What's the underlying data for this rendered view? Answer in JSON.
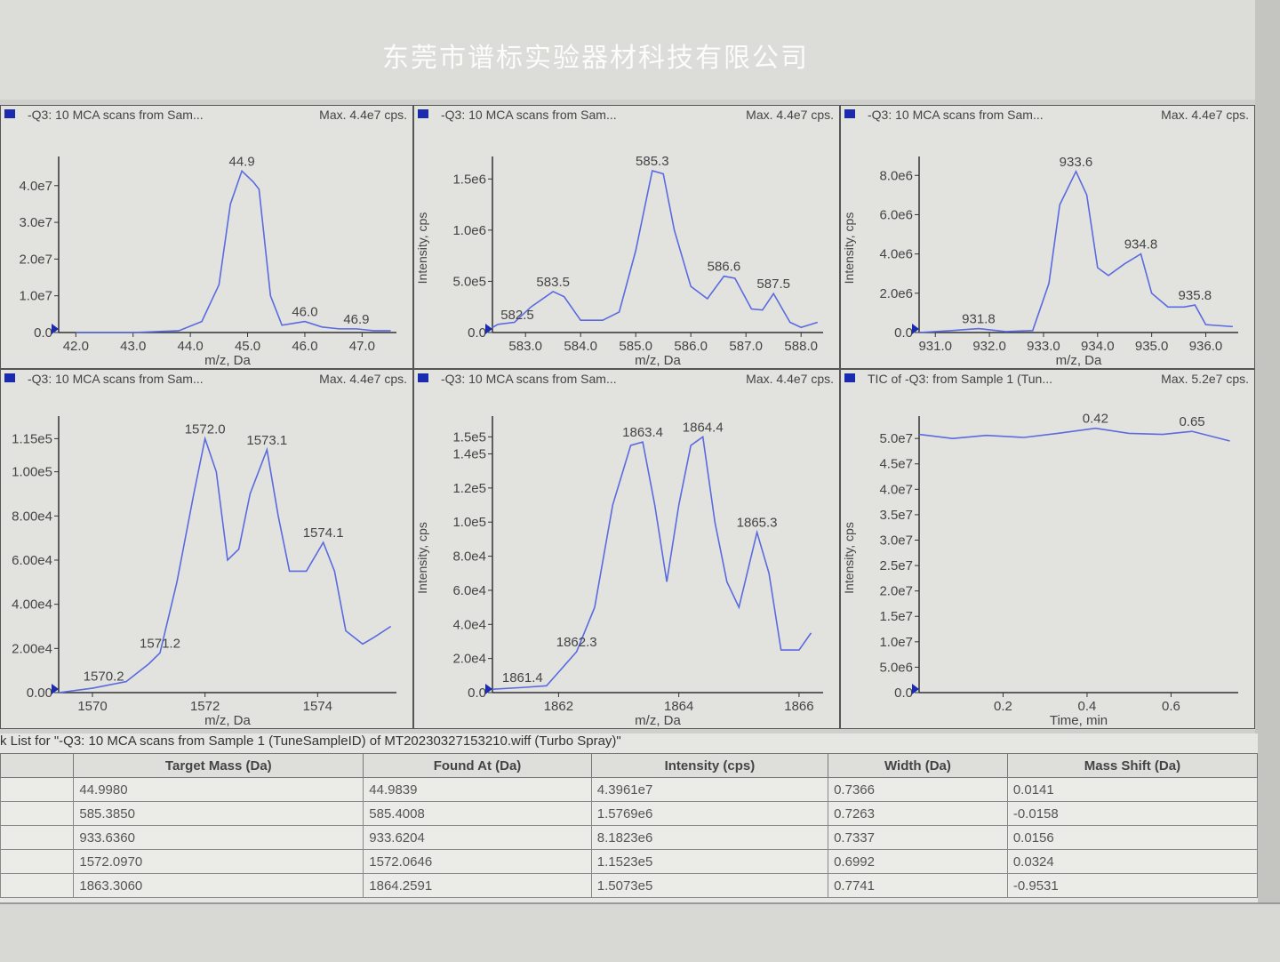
{
  "watermark": "东莞市谱标实验器材科技有限公司",
  "colors": {
    "series": "#5a6ae0",
    "legend": "#1a2bb0"
  },
  "chart_data": [
    {
      "type": "line",
      "title": "-Q3: 10 MCA scans from Sam...",
      "max_label": "Max. 4.4e7 cps.",
      "xlabel": "m/z, Da",
      "ylabel": "",
      "xlim": [
        41.7,
        47.6
      ],
      "ylim": [
        0,
        46000000.0
      ],
      "xticks": [
        {
          "v": 42,
          "l": "42.0"
        },
        {
          "v": 43,
          "l": "43.0"
        },
        {
          "v": 44,
          "l": "44.0"
        },
        {
          "v": 45,
          "l": "45.0"
        },
        {
          "v": 46,
          "l": "46.0"
        },
        {
          "v": 47,
          "l": "47.0"
        }
      ],
      "yticks": [
        {
          "v": 0,
          "l": "0.0"
        },
        {
          "v": 10000000.0,
          "l": "1.0e7"
        },
        {
          "v": 20000000.0,
          "l": "2.0e7"
        },
        {
          "v": 30000000.0,
          "l": "3.0e7"
        },
        {
          "v": 40000000.0,
          "l": "4.0e7"
        }
      ],
      "x": [
        42,
        43,
        43.8,
        44.2,
        44.5,
        44.7,
        44.9,
        45.1,
        45.2,
        45.4,
        45.6,
        45.8,
        46.0,
        46.3,
        46.6,
        46.9,
        47.2,
        47.5
      ],
      "y": [
        0,
        0,
        500000.0,
        3000000.0,
        13000000.0,
        35000000.0,
        44000000.0,
        41000000.0,
        39000000.0,
        10000000.0,
        2000000.0,
        2500000.0,
        3000000.0,
        1500000.0,
        1000000.0,
        1000000.0,
        500000.0,
        500000.0
      ],
      "peaks": [
        {
          "x": 44.9,
          "y": 44000000.0,
          "l": "44.9"
        },
        {
          "x": 46.0,
          "y": 3000000.0,
          "l": "46.0"
        },
        {
          "x": 46.9,
          "y": 1000000.0,
          "l": "46.9"
        }
      ]
    },
    {
      "type": "line",
      "title": "-Q3: 10 MCA scans from Sam...",
      "max_label": "Max. 4.4e7 cps.",
      "xlabel": "m/z, Da",
      "ylabel": "Intensity, cps",
      "xlim": [
        582.4,
        588.4
      ],
      "ylim": [
        0,
        1650000.0
      ],
      "xticks": [
        {
          "v": 583,
          "l": "583.0"
        },
        {
          "v": 584,
          "l": "584.0"
        },
        {
          "v": 585,
          "l": "585.0"
        },
        {
          "v": 586,
          "l": "586.0"
        },
        {
          "v": 587,
          "l": "587.0"
        },
        {
          "v": 588,
          "l": "588.0"
        }
      ],
      "yticks": [
        {
          "v": 0,
          "l": "0.0"
        },
        {
          "v": 500000.0,
          "l": "5.0e5"
        },
        {
          "v": 1000000.0,
          "l": "1.0e6"
        },
        {
          "v": 1500000.0,
          "l": "1.5e6"
        }
      ],
      "x": [
        582.4,
        582.5,
        582.8,
        583.1,
        583.5,
        583.7,
        584.0,
        584.4,
        584.7,
        585.0,
        585.3,
        585.5,
        585.7,
        586.0,
        586.3,
        586.6,
        586.8,
        587.1,
        587.3,
        587.5,
        587.8,
        588.0,
        588.3
      ],
      "y": [
        50000.0,
        80000.0,
        100000.0,
        250000.0,
        400000.0,
        350000.0,
        120000.0,
        120000.0,
        200000.0,
        800000.0,
        1580000.0,
        1550000.0,
        1000000.0,
        450000.0,
        330000.0,
        550000.0,
        530000.0,
        230000.0,
        220000.0,
        380000.0,
        100000.0,
        50000.0,
        100000.0
      ],
      "peaks": [
        {
          "x": 582.5,
          "y": 80000.0,
          "l": "582.5"
        },
        {
          "x": 583.5,
          "y": 400000.0,
          "l": "583.5"
        },
        {
          "x": 585.3,
          "y": 1580000.0,
          "l": "585.3"
        },
        {
          "x": 586.6,
          "y": 550000.0,
          "l": "586.6"
        },
        {
          "x": 587.5,
          "y": 380000.0,
          "l": "587.5"
        }
      ]
    },
    {
      "type": "line",
      "title": "-Q3: 10 MCA scans from Sam...",
      "max_label": "Max. 4.4e7 cps.",
      "xlabel": "m/z, Da",
      "ylabel": "Intensity, cps",
      "xlim": [
        930.7,
        936.6
      ],
      "ylim": [
        0,
        8600000.0
      ],
      "xticks": [
        {
          "v": 931,
          "l": "931.0"
        },
        {
          "v": 932,
          "l": "932.0"
        },
        {
          "v": 933,
          "l": "933.0"
        },
        {
          "v": 934,
          "l": "934.0"
        },
        {
          "v": 935,
          "l": "935.0"
        },
        {
          "v": 936,
          "l": "936.0"
        }
      ],
      "yticks": [
        {
          "v": 0,
          "l": "0.0"
        },
        {
          "v": 2000000.0,
          "l": "2.0e6"
        },
        {
          "v": 4000000.0,
          "l": "4.0e6"
        },
        {
          "v": 6000000.0,
          "l": "6.0e6"
        },
        {
          "v": 8000000.0,
          "l": "8.0e6"
        }
      ],
      "x": [
        930.7,
        931.3,
        931.8,
        932.3,
        932.8,
        933.1,
        933.3,
        933.6,
        933.8,
        934.0,
        934.2,
        934.5,
        934.8,
        935.0,
        935.3,
        935.6,
        935.8,
        936.0,
        936.5
      ],
      "y": [
        0,
        100000.0,
        200000.0,
        50000.0,
        100000.0,
        2500000.0,
        6500000.0,
        8200000.0,
        7000000.0,
        3300000.0,
        2900000.0,
        3500000.0,
        4000000.0,
        2000000.0,
        1300000.0,
        1300000.0,
        1400000.0,
        400000.0,
        300000.0
      ],
      "peaks": [
        {
          "x": 931.8,
          "y": 200000.0,
          "l": "931.8"
        },
        {
          "x": 933.6,
          "y": 8200000.0,
          "l": "933.6"
        },
        {
          "x": 934.8,
          "y": 4000000.0,
          "l": "934.8"
        },
        {
          "x": 935.8,
          "y": 1400000.0,
          "l": "935.8"
        }
      ]
    },
    {
      "type": "line",
      "title": "-Q3: 10 MCA scans from Sam...",
      "max_label": "Max. 4.4e7 cps.",
      "xlabel": "m/z, Da",
      "ylabel": "",
      "xlim": [
        1569.4,
        1575.4
      ],
      "ylim": [
        0,
        122000.0
      ],
      "xticks": [
        {
          "v": 1570,
          "l": "1570"
        },
        {
          "v": 1572,
          "l": "1572"
        },
        {
          "v": 1574,
          "l": "1574"
        }
      ],
      "yticks": [
        {
          "v": 0,
          "l": "0.00"
        },
        {
          "v": 20000.0,
          "l": "2.00e4"
        },
        {
          "v": 40000.0,
          "l": "4.00e4"
        },
        {
          "v": 60000.0,
          "l": "6.00e4"
        },
        {
          "v": 80000.0,
          "l": "8.00e4"
        },
        {
          "v": 100000.0,
          "l": "1.00e5"
        },
        {
          "v": 115000.0,
          "l": "1.15e5"
        }
      ],
      "x": [
        1569.4,
        1570.0,
        1570.2,
        1570.6,
        1571.0,
        1571.2,
        1571.5,
        1571.8,
        1572.0,
        1572.2,
        1572.4,
        1572.6,
        1572.8,
        1573.1,
        1573.3,
        1573.5,
        1573.8,
        1574.1,
        1574.3,
        1574.5,
        1574.8,
        1575.0,
        1575.3
      ],
      "y": [
        0,
        2000.0,
        3000.0,
        5000.0,
        13000.0,
        18000.0,
        50000.0,
        90000.0,
        115000.0,
        100000.0,
        60000.0,
        65000.0,
        90000.0,
        110000.0,
        80000.0,
        55000.0,
        55000.0,
        68000.0,
        55000.0,
        28000.0,
        22000.0,
        25000.0,
        30000.0
      ],
      "peaks": [
        {
          "x": 1570.2,
          "y": 3000.0,
          "l": "1570.2"
        },
        {
          "x": 1571.2,
          "y": 18000.0,
          "l": "1571.2"
        },
        {
          "x": 1572.0,
          "y": 115000.0,
          "l": "1572.0"
        },
        {
          "x": 1573.1,
          "y": 110000.0,
          "l": "1573.1"
        },
        {
          "x": 1574.1,
          "y": 68000.0,
          "l": "1574.1"
        }
      ]
    },
    {
      "type": "line",
      "title": "-Q3: 10 MCA scans from Sam...",
      "max_label": "Max. 4.4e7 cps.",
      "xlabel": "m/z, Da",
      "ylabel": "Intensity, cps",
      "xlim": [
        1860.9,
        1866.4
      ],
      "ylim": [
        0,
        158000.0
      ],
      "xticks": [
        {
          "v": 1862,
          "l": "1862"
        },
        {
          "v": 1864,
          "l": "1864"
        },
        {
          "v": 1866,
          "l": "1866"
        }
      ],
      "yticks": [
        {
          "v": 0,
          "l": "0.0"
        },
        {
          "v": 20000.0,
          "l": "2.0e4"
        },
        {
          "v": 40000.0,
          "l": "4.0e4"
        },
        {
          "v": 60000.0,
          "l": "6.0e4"
        },
        {
          "v": 80000.0,
          "l": "8.0e4"
        },
        {
          "v": 100000.0,
          "l": "1.0e5"
        },
        {
          "v": 120000.0,
          "l": "1.2e5"
        },
        {
          "v": 140000.0,
          "l": "1.4e5"
        },
        {
          "v": 150000.0,
          "l": "1.5e5"
        }
      ],
      "x": [
        1860.9,
        1861.4,
        1861.8,
        1862.0,
        1862.3,
        1862.6,
        1862.9,
        1863.2,
        1863.4,
        1863.6,
        1863.8,
        1864.0,
        1864.2,
        1864.4,
        1864.6,
        1864.8,
        1865.0,
        1865.3,
        1865.5,
        1865.7,
        1866.0,
        1866.2
      ],
      "y": [
        2000.0,
        3000.0,
        4000.0,
        12000.0,
        24000.0,
        50000.0,
        110000.0,
        145000.0,
        147000.0,
        110000.0,
        65000.0,
        110000.0,
        145000.0,
        150000.0,
        100000.0,
        65000.0,
        50000.0,
        94000.0,
        70000.0,
        25000.0,
        25000.0,
        35000.0
      ],
      "peaks": [
        {
          "x": 1861.4,
          "y": 3000.0,
          "l": "1861.4"
        },
        {
          "x": 1862.3,
          "y": 24000.0,
          "l": "1862.3"
        },
        {
          "x": 1863.4,
          "y": 147000.0,
          "l": "1863.4"
        },
        {
          "x": 1864.4,
          "y": 150000.0,
          "l": "1864.4"
        },
        {
          "x": 1865.3,
          "y": 94000.0,
          "l": "1865.3"
        }
      ]
    },
    {
      "type": "line",
      "title": "TIC of -Q3: from Sample 1 (Tun...",
      "max_label": "Max. 5.2e7 cps.",
      "xlabel": "Time, min",
      "ylabel": "Intensity, cps",
      "xlim": [
        0,
        0.76
      ],
      "ylim": [
        0,
        53000000.0
      ],
      "xticks": [
        {
          "v": 0.2,
          "l": "0.2"
        },
        {
          "v": 0.4,
          "l": "0.4"
        },
        {
          "v": 0.6,
          "l": "0.6"
        }
      ],
      "yticks": [
        {
          "v": 0,
          "l": "0.0"
        },
        {
          "v": 5000000.0,
          "l": "5.0e6"
        },
        {
          "v": 10000000.0,
          "l": "1.0e7"
        },
        {
          "v": 15000000.0,
          "l": "1.5e7"
        },
        {
          "v": 20000000.0,
          "l": "2.0e7"
        },
        {
          "v": 25000000.0,
          "l": "2.5e7"
        },
        {
          "v": 30000000.0,
          "l": "3.0e7"
        },
        {
          "v": 35000000.0,
          "l": "3.5e7"
        },
        {
          "v": 40000000.0,
          "l": "4.0e7"
        },
        {
          "v": 45000000.0,
          "l": "4.5e7"
        },
        {
          "v": 50000000.0,
          "l": "5.0e7"
        }
      ],
      "x": [
        0,
        0.08,
        0.16,
        0.25,
        0.33,
        0.42,
        0.5,
        0.58,
        0.65,
        0.74
      ],
      "y": [
        50800000.0,
        50000000.0,
        50600000.0,
        50200000.0,
        51000000.0,
        52000000.0,
        51000000.0,
        50800000.0,
        51400000.0,
        49500000.0
      ],
      "peaks": [
        {
          "x": 0.42,
          "y": 52000000.0,
          "l": "0.42"
        },
        {
          "x": 0.65,
          "y": 51400000.0,
          "l": "0.65"
        }
      ]
    }
  ],
  "table": {
    "caption": "k List for \"-Q3: 10 MCA scans from Sample 1 (TuneSampleID) of MT20230327153210.wiff (Turbo Spray)\"",
    "headers": [
      "Target Mass (Da)",
      "Found At (Da)",
      "Intensity (cps)",
      "Width (Da)",
      "Mass Shift (Da)"
    ],
    "rows": [
      [
        "44.9980",
        "44.9839",
        "4.3961e7",
        "0.7366",
        "0.0141"
      ],
      [
        "585.3850",
        "585.4008",
        "1.5769e6",
        "0.7263",
        "-0.0158"
      ],
      [
        "933.6360",
        "933.6204",
        "8.1823e6",
        "0.7337",
        "0.0156"
      ],
      [
        "1572.0970",
        "1572.0646",
        "1.1523e5",
        "0.6992",
        "0.0324"
      ],
      [
        "1863.3060",
        "1864.2591",
        "1.5073e5",
        "0.7741",
        "-0.9531"
      ]
    ]
  }
}
